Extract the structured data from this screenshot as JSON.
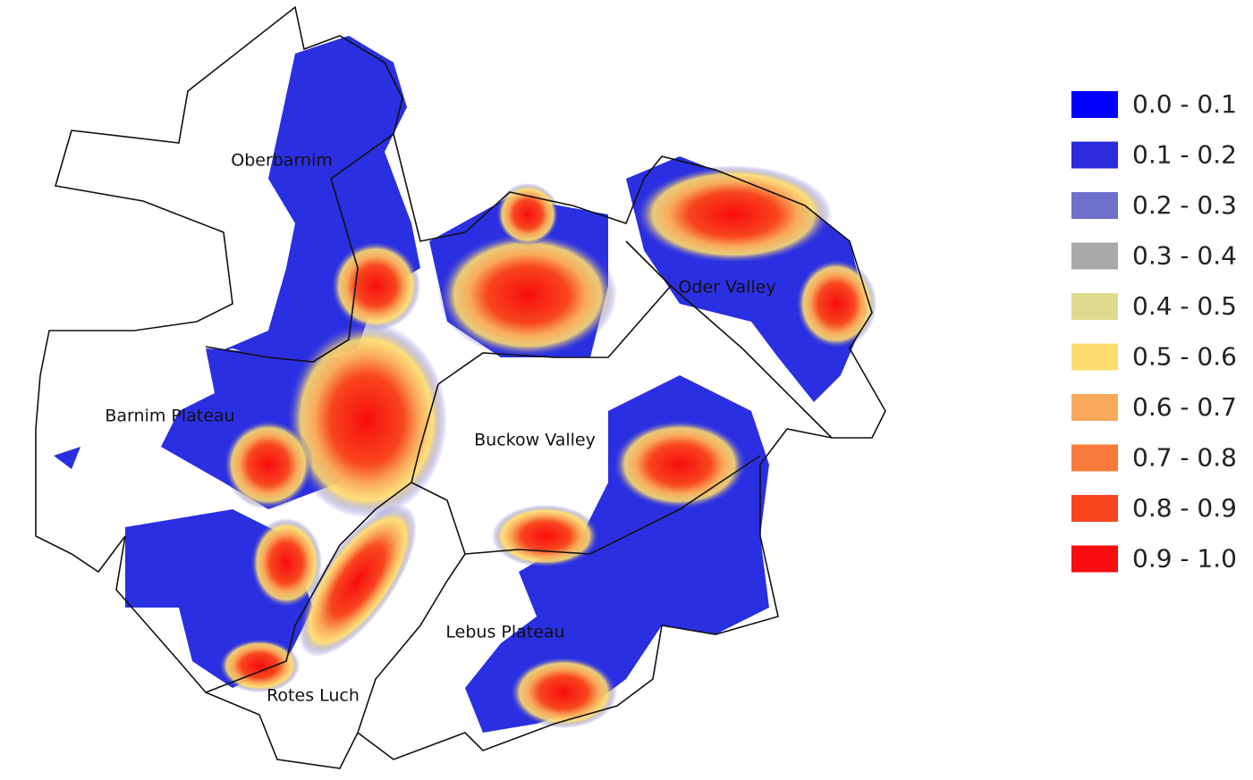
{
  "map": {
    "regions": [
      {
        "label": "Oberbarnim"
      },
      {
        "label": "Oder Valley"
      },
      {
        "label": "Barnim Plateau"
      },
      {
        "label": "Buckow Valley"
      },
      {
        "label": "Lebus Plateau"
      },
      {
        "label": "Rotes Luch"
      }
    ]
  },
  "legend": {
    "items": [
      {
        "label": "0.0 - 0.1",
        "color": "#0000ff"
      },
      {
        "label": "0.1 - 0.2",
        "color": "#2b2bdc"
      },
      {
        "label": "0.2 - 0.3",
        "color": "#6f72c8"
      },
      {
        "label": "0.3 - 0.4",
        "color": "#a9a9a9"
      },
      {
        "label": "0.4 - 0.5",
        "color": "#dedc8c"
      },
      {
        "label": "0.5 - 0.6",
        "color": "#fcdc6e"
      },
      {
        "label": "0.6 - 0.7",
        "color": "#f9a95a"
      },
      {
        "label": "0.7 - 0.8",
        "color": "#f97a3a"
      },
      {
        "label": "0.8 - 0.9",
        "color": "#f8451f"
      },
      {
        "label": "0.9 - 1.0",
        "color": "#f70d0d"
      }
    ]
  }
}
